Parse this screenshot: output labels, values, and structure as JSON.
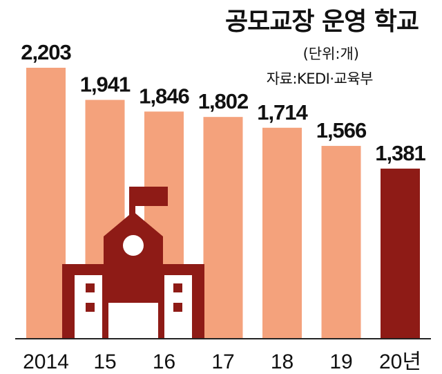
{
  "chart_data": {
    "type": "bar",
    "title": "공모교장 운영 학교",
    "unit_label": "(단위:개)",
    "source": "자료:KEDI·교육부",
    "categories": [
      "2014",
      "15",
      "16",
      "17",
      "18",
      "19",
      "20년"
    ],
    "values": [
      2203,
      1941,
      1846,
      1802,
      1714,
      1566,
      1381
    ],
    "value_labels": [
      "2,203",
      "1,941",
      "1,846",
      "1,802",
      "1,714",
      "1,566",
      "1,381"
    ],
    "ylim": [
      0,
      2203
    ],
    "grid": false,
    "colors": {
      "bar": "#f4a27c",
      "highlight": "#8e1b16",
      "axis": "#222222"
    },
    "highlight_index": 6
  },
  "decoration": {
    "icon": "school-building-icon"
  }
}
